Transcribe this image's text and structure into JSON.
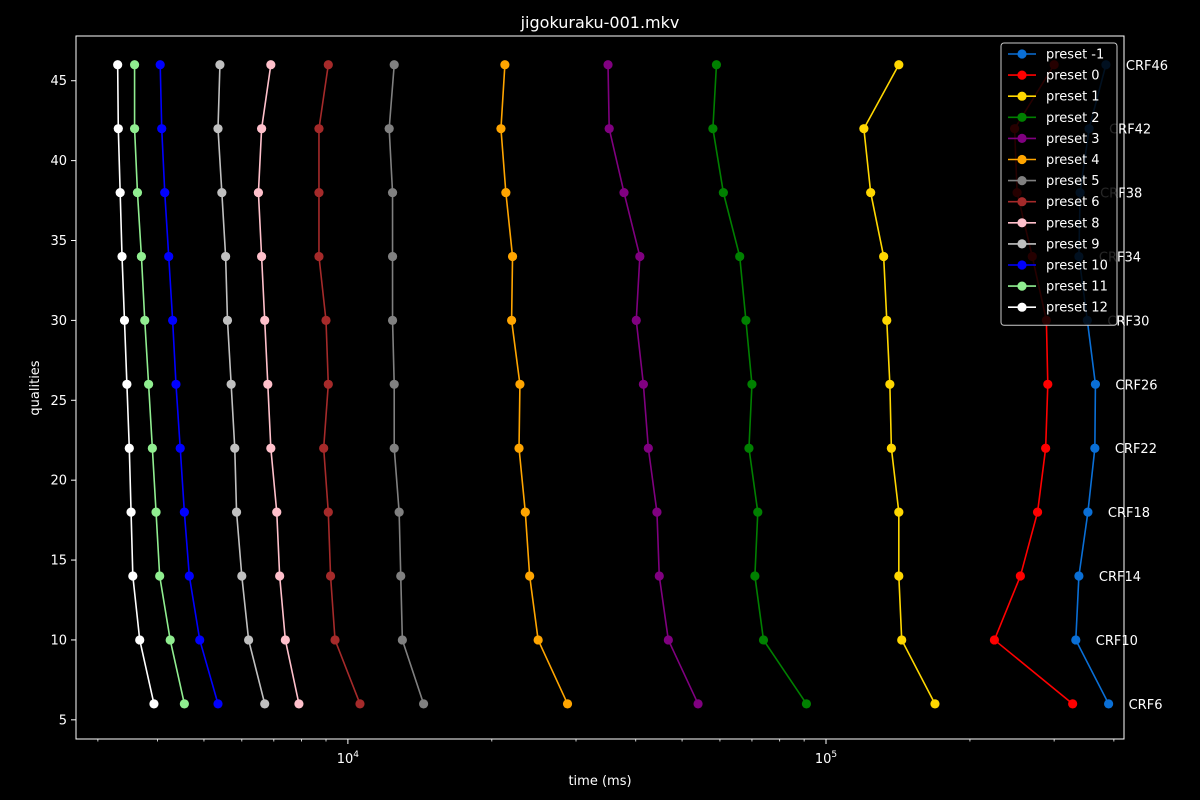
{
  "chart_data": {
    "type": "line",
    "title": "jigokuraku-001.mkv",
    "xlabel": "time (ms)",
    "ylabel": "qualities",
    "x_scale": "log",
    "xlim": [
      2700,
      420000
    ],
    "ylim": [
      3.8,
      47.8
    ],
    "yticks": [
      5,
      10,
      15,
      20,
      25,
      30,
      35,
      40,
      45
    ],
    "xticks_major": [
      10000,
      100000
    ],
    "xtick_labels": [
      "10^4",
      "10^5"
    ],
    "legend_position": "top-right",
    "qualities": [
      46,
      42,
      38,
      34,
      30,
      26,
      22,
      18,
      14,
      10,
      6
    ],
    "crf_labels": [
      "CRF46",
      "CRF42",
      "CRF38",
      "CRF34",
      "CRF30",
      "CRF26",
      "CRF22",
      "CRF18",
      "CRF14",
      "CRF10",
      "CRF6"
    ],
    "series": [
      {
        "name": "preset -1",
        "color": "#0a6fd6",
        "times": [
          385000,
          355000,
          340000,
          338000,
          352000,
          366000,
          365000,
          353000,
          338000,
          333000,
          390000
        ]
      },
      {
        "name": "preset 0",
        "color": "#ff0000",
        "times": [
          300000,
          248000,
          251000,
          270000,
          289000,
          291000,
          288000,
          277000,
          255000,
          225000,
          328000
        ]
      },
      {
        "name": "preset 1",
        "color": "#ffd700",
        "times": [
          142000,
          120000,
          124000,
          132000,
          134000,
          136000,
          137000,
          142000,
          142000,
          144000,
          169000
        ]
      },
      {
        "name": "preset 2",
        "color": "#008000",
        "times": [
          59000,
          58000,
          61000,
          66000,
          68000,
          70000,
          69000,
          72000,
          71000,
          74000,
          91000
        ]
      },
      {
        "name": "preset 3",
        "color": "#800080",
        "times": [
          35000,
          35200,
          37800,
          40800,
          40100,
          41500,
          42500,
          44300,
          44800,
          46800,
          54000
        ]
      },
      {
        "name": "preset 4",
        "color": "#ffa500",
        "times": [
          21300,
          20900,
          21400,
          22100,
          22000,
          22900,
          22800,
          23500,
          24000,
          25000,
          28800
        ]
      },
      {
        "name": "preset 5",
        "color": "#808080",
        "times": [
          12500,
          12200,
          12400,
          12400,
          12400,
          12500,
          12500,
          12800,
          12900,
          13000,
          14400
        ]
      },
      {
        "name": "preset 6",
        "color": "#a52a2a",
        "times": [
          9100,
          8700,
          8700,
          8700,
          9000,
          9100,
          8900,
          9100,
          9200,
          9400,
          10600
        ]
      },
      {
        "name": "preset 8",
        "color": "#ffc0cb",
        "times": [
          6900,
          6600,
          6500,
          6600,
          6700,
          6800,
          6900,
          7100,
          7200,
          7400,
          7900
        ]
      },
      {
        "name": "preset 9",
        "color": "#c0c0c0",
        "times": [
          5400,
          5350,
          5450,
          5550,
          5600,
          5700,
          5800,
          5850,
          6000,
          6200,
          6700
        ]
      },
      {
        "name": "preset 10",
        "color": "#0000ff",
        "times": [
          4050,
          4080,
          4140,
          4220,
          4300,
          4370,
          4460,
          4550,
          4660,
          4900,
          5350
        ]
      },
      {
        "name": "preset 11",
        "color": "#90ee90",
        "times": [
          3580,
          3580,
          3630,
          3700,
          3760,
          3830,
          3900,
          3970,
          4040,
          4250,
          4550
        ]
      },
      {
        "name": "preset 12",
        "color": "#ffffff",
        "times": [
          3300,
          3310,
          3340,
          3370,
          3410,
          3450,
          3490,
          3520,
          3550,
          3670,
          3930
        ]
      }
    ]
  }
}
